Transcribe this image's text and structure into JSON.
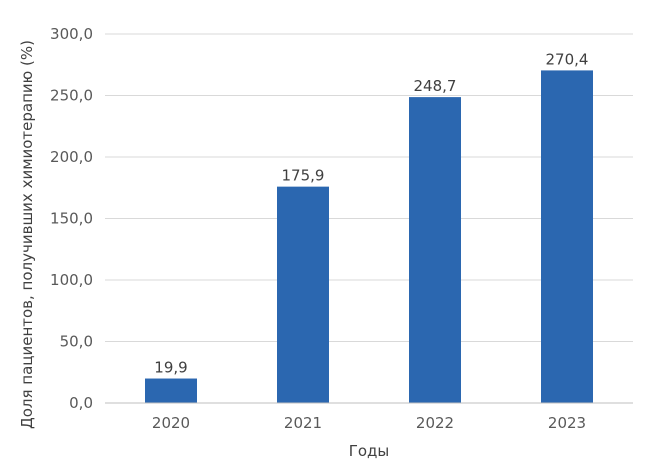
{
  "chart_data": {
    "type": "bar",
    "categories": [
      "2020",
      "2021",
      "2022",
      "2023"
    ],
    "values": [
      19.9,
      175.9,
      248.7,
      270.4
    ],
    "data_labels": [
      "19,9",
      "175,9",
      "248,7",
      "270,4"
    ],
    "title": "",
    "xlabel": "Годы",
    "ylabel": "Доля пациентов, получивших химиотерапию (%)",
    "ylim": [
      0,
      300
    ],
    "yticks": [
      0,
      50,
      100,
      150,
      200,
      250,
      300
    ],
    "ytick_labels": [
      "0,0",
      "50,0",
      "100,0",
      "150,0",
      "200,0",
      "250,0",
      "300,0"
    ],
    "grid": true,
    "legend": "none",
    "bar_color": "#2b67b0"
  }
}
